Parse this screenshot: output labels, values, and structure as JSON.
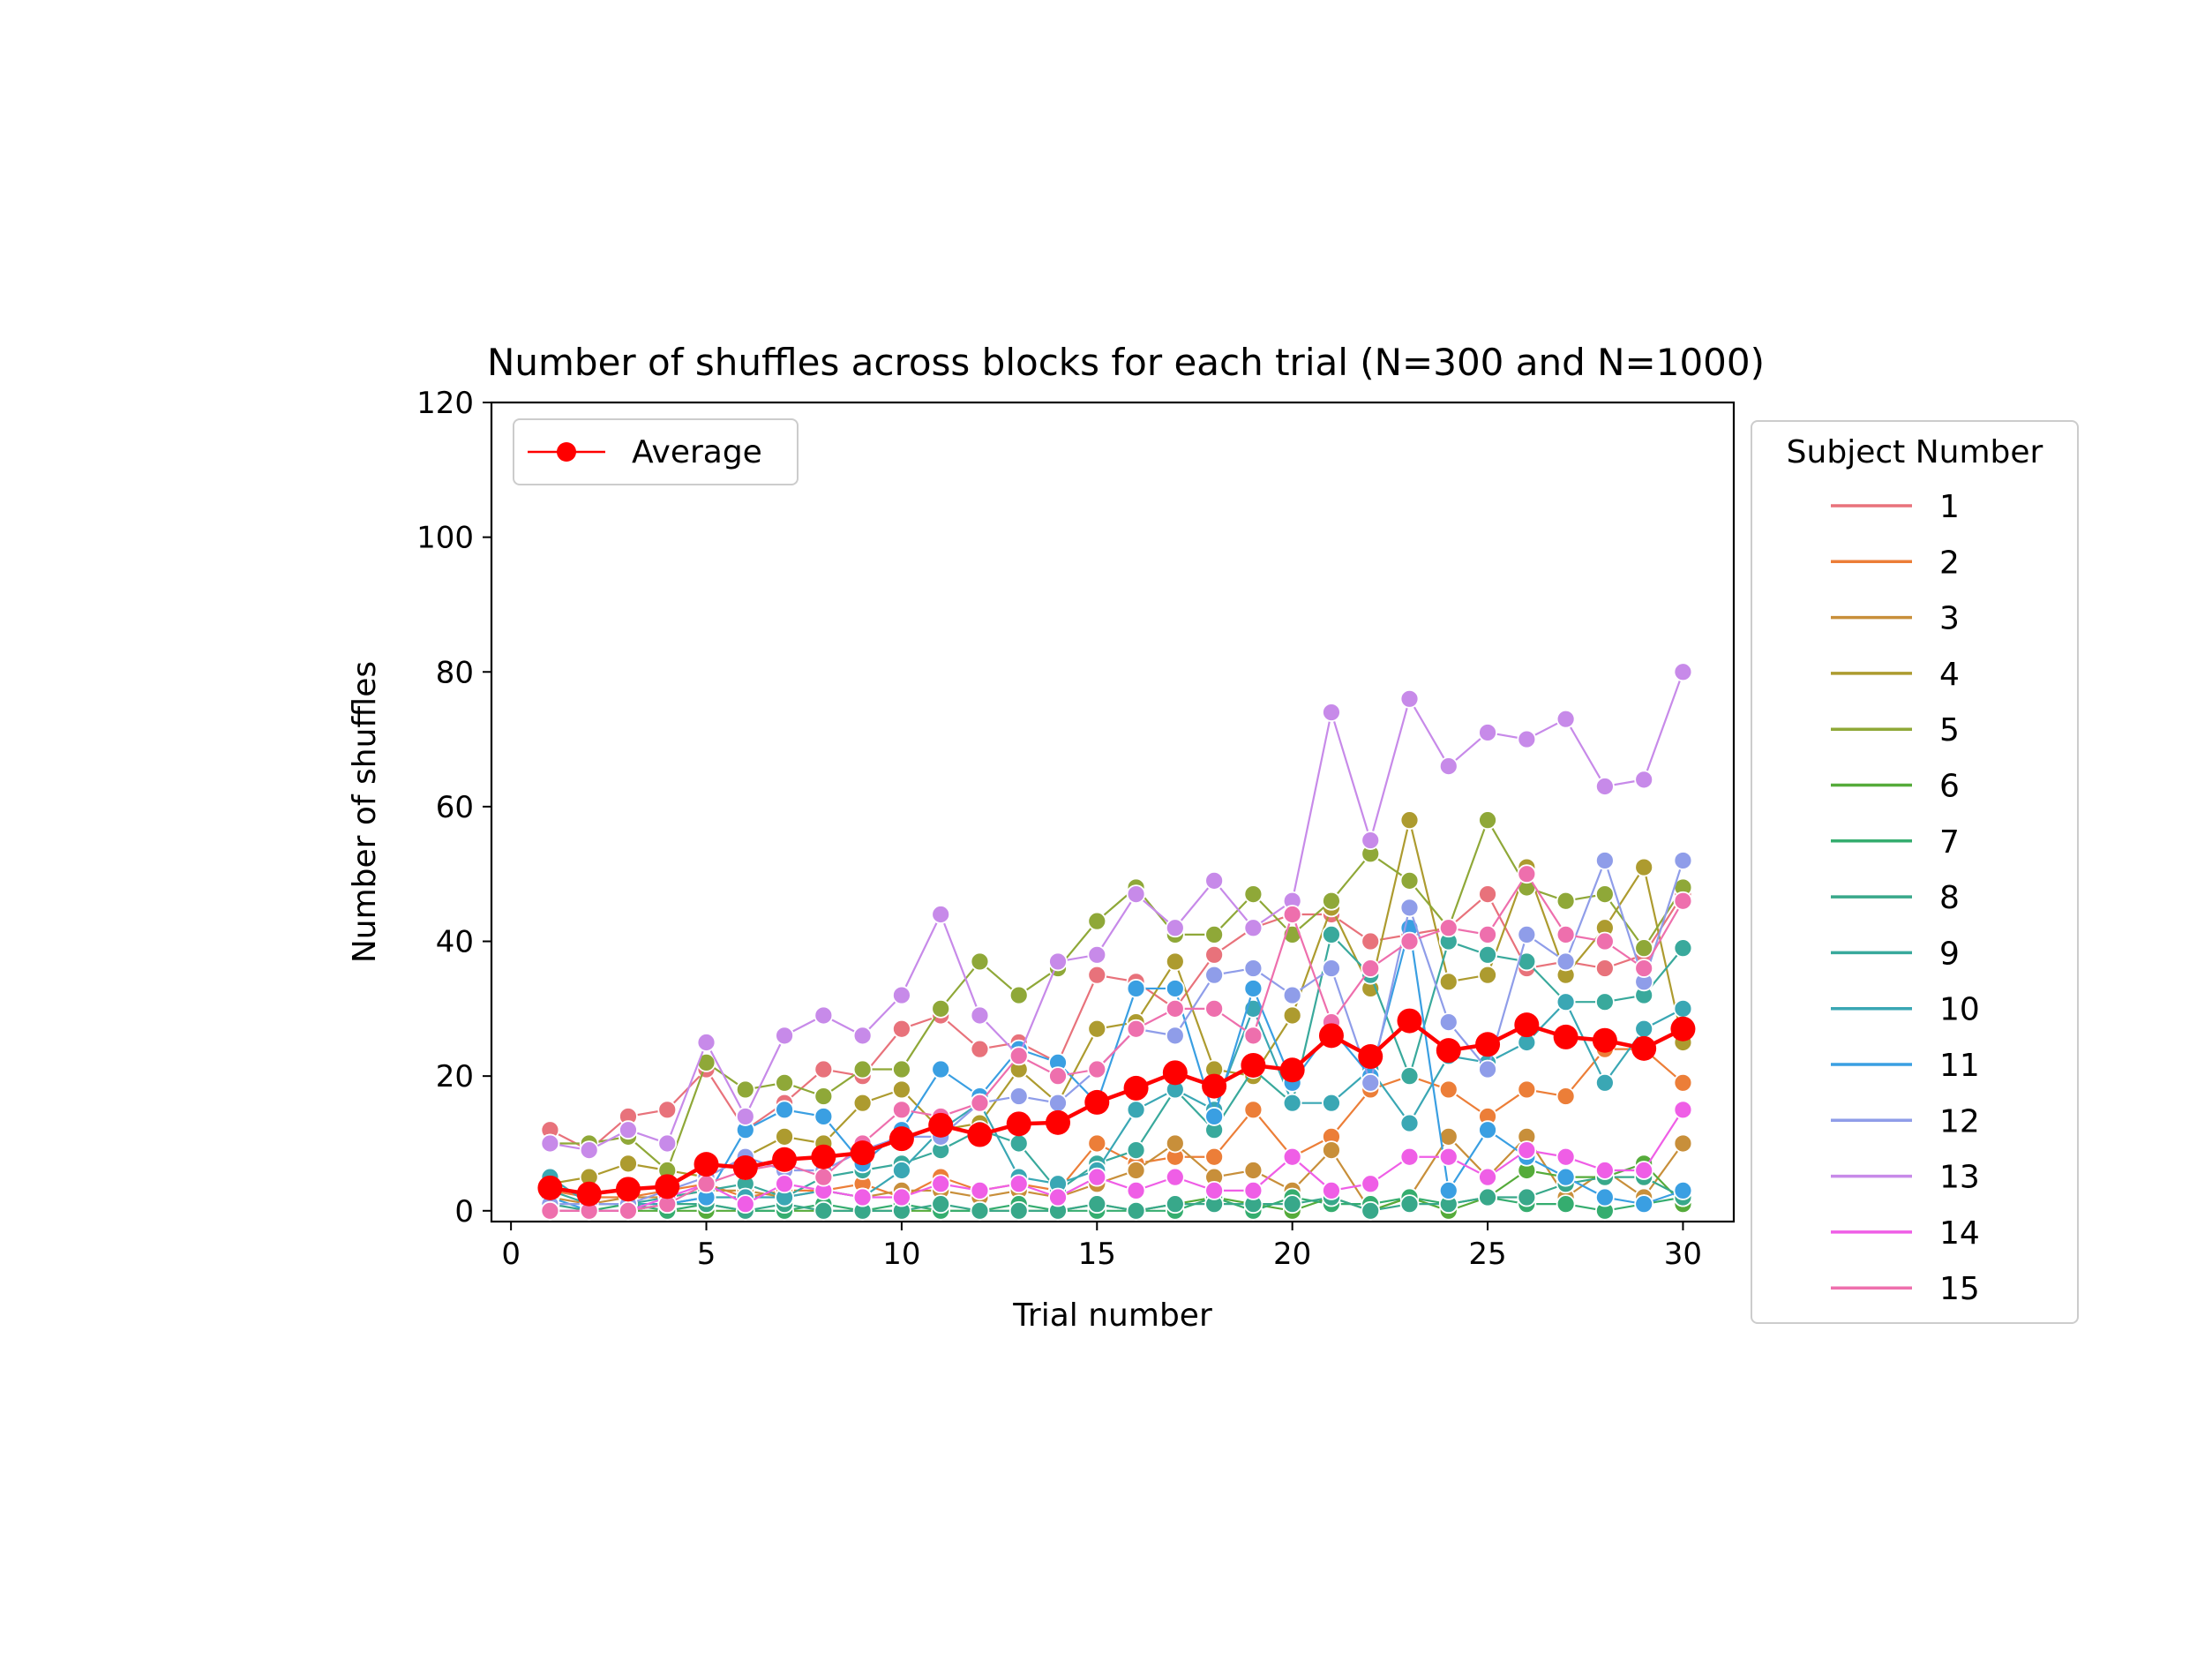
{
  "chart_data": {
    "type": "line",
    "title": "Number of shuffles across blocks for each trial (N=300 and N=1000)",
    "xlabel": "Trial number",
    "ylabel": "Number of shuffles",
    "xlim": [
      -0.5,
      31.3
    ],
    "ylim": [
      -1.6,
      120
    ],
    "xticks": [
      0,
      5,
      10,
      15,
      20,
      25,
      30
    ],
    "yticks": [
      0,
      20,
      40,
      60,
      80,
      100,
      120
    ],
    "legend_title": "Subject Number",
    "legend_subjects_placement": "outside-right",
    "legend_average_placement": "upper-left",
    "grid": false,
    "x": [
      1,
      2,
      3,
      4,
      5,
      6,
      7,
      8,
      9,
      10,
      11,
      12,
      13,
      14,
      15,
      16,
      17,
      18,
      19,
      20,
      21,
      22,
      23,
      24,
      25,
      26,
      27,
      28,
      29,
      30
    ],
    "series": [
      {
        "name": "1",
        "color": "#e8727b",
        "values": [
          12,
          9,
          14,
          15,
          21,
          12,
          16,
          21,
          20,
          27,
          29,
          24,
          25,
          22,
          35,
          34,
          30,
          38,
          42,
          44,
          44,
          40,
          41,
          42,
          47,
          36,
          37,
          36,
          38,
          47
        ]
      },
      {
        "name": "2",
        "color": "#ec7e38",
        "values": [
          3,
          2,
          2,
          3,
          4,
          2,
          3,
          3,
          4,
          2,
          5,
          3,
          4,
          3,
          10,
          7,
          8,
          8,
          15,
          8,
          11,
          18,
          20,
          18,
          14,
          18,
          17,
          24,
          24,
          19
        ]
      },
      {
        "name": "3",
        "color": "#c88f3a",
        "values": [
          2,
          1,
          2,
          2,
          3,
          3,
          2,
          3,
          2,
          3,
          3,
          2,
          3,
          2,
          4,
          6,
          10,
          5,
          6,
          3,
          9,
          0,
          2,
          11,
          5,
          11,
          2,
          6,
          2,
          10
        ]
      },
      {
        "name": "4",
        "color": "#ad9b2f",
        "values": [
          4,
          5,
          7,
          6,
          5,
          8,
          11,
          10,
          16,
          18,
          12,
          13,
          21,
          16,
          27,
          28,
          37,
          21,
          20,
          29,
          45,
          33,
          58,
          34,
          35,
          51,
          35,
          42,
          51,
          25
        ]
      },
      {
        "name": "5",
        "color": "#8fa838",
        "values": [
          10,
          10,
          11,
          6,
          22,
          18,
          19,
          17,
          21,
          21,
          30,
          37,
          32,
          36,
          43,
          48,
          41,
          41,
          47,
          41,
          46,
          53,
          49,
          42,
          58,
          48,
          46,
          47,
          39,
          48
        ]
      },
      {
        "name": "6",
        "color": "#55ab3a",
        "values": [
          0,
          0,
          0,
          0,
          0,
          0,
          0,
          0,
          0,
          0,
          0,
          0,
          0,
          0,
          1,
          0,
          1,
          2,
          1,
          0,
          2,
          0,
          2,
          0,
          2,
          6,
          5,
          5,
          7,
          1
        ]
      },
      {
        "name": "7",
        "color": "#35ad6f",
        "values": [
          0,
          0,
          1,
          0,
          1,
          0,
          0,
          1,
          0,
          1,
          0,
          0,
          1,
          0,
          0,
          0,
          0,
          2,
          0,
          2,
          1,
          1,
          2,
          1,
          2,
          1,
          1,
          0,
          1,
          2
        ]
      },
      {
        "name": "8",
        "color": "#38a88a",
        "values": [
          1,
          0,
          0,
          1,
          1,
          0,
          1,
          0,
          0,
          0,
          1,
          0,
          0,
          0,
          1,
          0,
          1,
          1,
          1,
          1,
          2,
          0,
          1,
          1,
          2,
          2,
          4,
          5,
          5,
          2
        ]
      },
      {
        "name": "9",
        "color": "#39a99c",
        "values": [
          3,
          1,
          1,
          2,
          3,
          4,
          2,
          5,
          6,
          7,
          9,
          12,
          10,
          3,
          7,
          9,
          18,
          12,
          21,
          16,
          41,
          35,
          20,
          40,
          38,
          37,
          31,
          31,
          32,
          39
        ]
      },
      {
        "name": "10",
        "color": "#3aa7b4",
        "values": [
          5,
          1,
          1,
          1,
          2,
          2,
          2,
          3,
          2,
          6,
          12,
          16,
          5,
          4,
          6,
          15,
          18,
          15,
          30,
          16,
          16,
          21,
          13,
          23,
          22,
          25,
          31,
          19,
          27,
          30
        ]
      },
      {
        "name": "11",
        "color": "#3a9fe2",
        "values": [
          2,
          0,
          0,
          1,
          2,
          12,
          15,
          14,
          7,
          12,
          21,
          17,
          24,
          22,
          16,
          33,
          33,
          14,
          33,
          19,
          27,
          20,
          42,
          3,
          12,
          8,
          5,
          2,
          1,
          3
        ]
      },
      {
        "name": "12",
        "color": "#8f9de9",
        "values": [
          1,
          1,
          1,
          3,
          5,
          8,
          6,
          6,
          9,
          11,
          11,
          16,
          17,
          16,
          21,
          27,
          26,
          35,
          36,
          32,
          36,
          19,
          45,
          28,
          21,
          41,
          37,
          52,
          34,
          52
        ]
      },
      {
        "name": "13",
        "color": "#c78ae9",
        "values": [
          10,
          9,
          12,
          10,
          25,
          14,
          26,
          29,
          26,
          32,
          44,
          29,
          23,
          37,
          38,
          47,
          42,
          49,
          42,
          46,
          74,
          55,
          76,
          66,
          71,
          70,
          73,
          63,
          64,
          80
        ]
      },
      {
        "name": "14",
        "color": "#ef5ee6",
        "values": [
          0,
          0,
          0,
          2,
          4,
          1,
          4,
          3,
          2,
          2,
          4,
          3,
          4,
          2,
          5,
          3,
          5,
          3,
          3,
          8,
          3,
          4,
          8,
          8,
          5,
          9,
          8,
          6,
          6,
          15
        ]
      },
      {
        "name": "15",
        "color": "#ee6fad",
        "values": [
          0,
          0,
          0,
          1,
          4,
          6,
          7,
          5,
          10,
          15,
          14,
          16,
          23,
          20,
          21,
          27,
          30,
          30,
          26,
          44,
          28,
          36,
          40,
          42,
          41,
          50,
          41,
          40,
          36,
          46
        ]
      }
    ],
    "average": {
      "name": "Average",
      "color": "#ff0000",
      "values": [
        3.4,
        2.5,
        3.2,
        3.6,
        6.9,
        6.4,
        7.6,
        8.0,
        8.6,
        10.7,
        12.7,
        11.3,
        12.9,
        13.1,
        16.1,
        18.2,
        20.5,
        18.5,
        21.6,
        20.9,
        26.0,
        22.9,
        28.2,
        23.8,
        24.7,
        27.6,
        25.8,
        25.3,
        24.1,
        27.0
      ]
    }
  }
}
